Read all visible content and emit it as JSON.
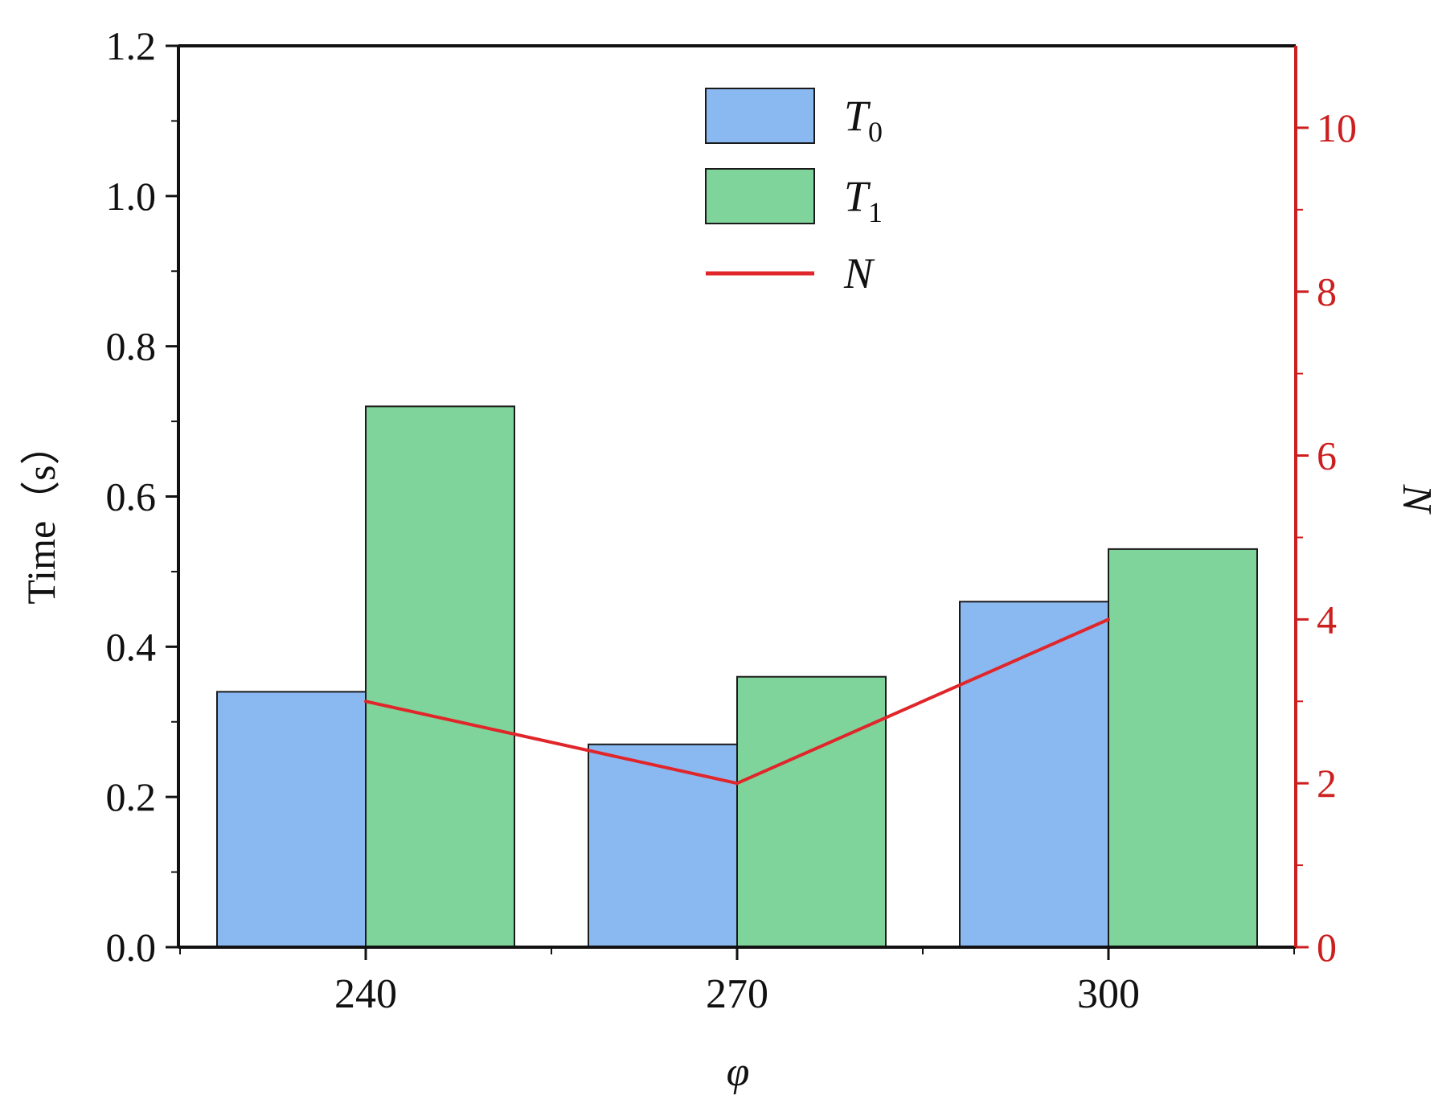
{
  "chart_data": {
    "type": "bar",
    "categories": [
      "240",
      "270",
      "300"
    ],
    "series": [
      {
        "name": "T",
        "subscript": "0",
        "kind": "bar",
        "axis": "left",
        "color": "#8ab8f0",
        "values": [
          0.34,
          0.27,
          0.46
        ]
      },
      {
        "name": "T",
        "subscript": "1",
        "kind": "bar",
        "axis": "left",
        "color": "#7ed49a",
        "values": [
          0.72,
          0.36,
          0.53
        ]
      },
      {
        "name": "N",
        "kind": "line",
        "axis": "right",
        "color": "#e0262a",
        "values": [
          3,
          2,
          4
        ]
      }
    ],
    "xlabel": "φ",
    "ylabel": "Time（s）",
    "y2label": "N",
    "ylim": [
      0,
      1.2
    ],
    "y2lim": [
      0,
      11
    ],
    "yticks": [
      "0.0",
      "0.2",
      "0.4",
      "0.6",
      "0.8",
      "1.0",
      "1.2"
    ],
    "y2ticks": [
      "0",
      "2",
      "4",
      "6",
      "8",
      "10"
    ],
    "grid": false,
    "legend_position": "top-center",
    "right_axis_color": "#cc1f1f"
  }
}
